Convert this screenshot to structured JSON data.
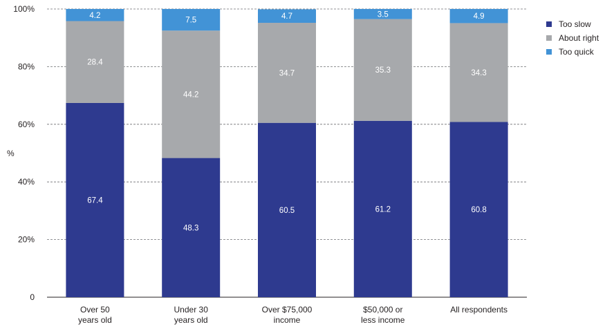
{
  "chart_data": {
    "type": "bar",
    "stacked": true,
    "ylabel": "%",
    "ylim": [
      0,
      100
    ],
    "y_ticks": [
      "0",
      "20%",
      "40%",
      "60%",
      "80%",
      "100%"
    ],
    "grid": true,
    "legend_position": "top-right",
    "categories": [
      [
        "Over 50",
        "years old"
      ],
      [
        "Under 30",
        "years old"
      ],
      [
        "Over $75,000",
        "income"
      ],
      [
        "$50,000 or",
        "less income"
      ],
      [
        "All respondents"
      ]
    ],
    "series": [
      {
        "name": "Too slow",
        "color": "#2e3a8f",
        "values": [
          67.4,
          48.3,
          60.5,
          61.2,
          60.8
        ],
        "labels": [
          "67.4",
          "48.3",
          "60.5",
          "61.2",
          "60.8"
        ]
      },
      {
        "name": "About right",
        "color": "#a7a9ac",
        "values": [
          28.4,
          44.2,
          34.7,
          35.3,
          34.3
        ],
        "labels": [
          "28.4",
          "44.2",
          "34.7",
          "35.3",
          "34.3"
        ]
      },
      {
        "name": "Too quick",
        "color": "#4293d6",
        "values": [
          4.2,
          7.5,
          4.7,
          3.5,
          4.9
        ],
        "labels": [
          "4.2",
          "7.5",
          "4.7",
          "3.5",
          "4.9"
        ]
      }
    ]
  }
}
